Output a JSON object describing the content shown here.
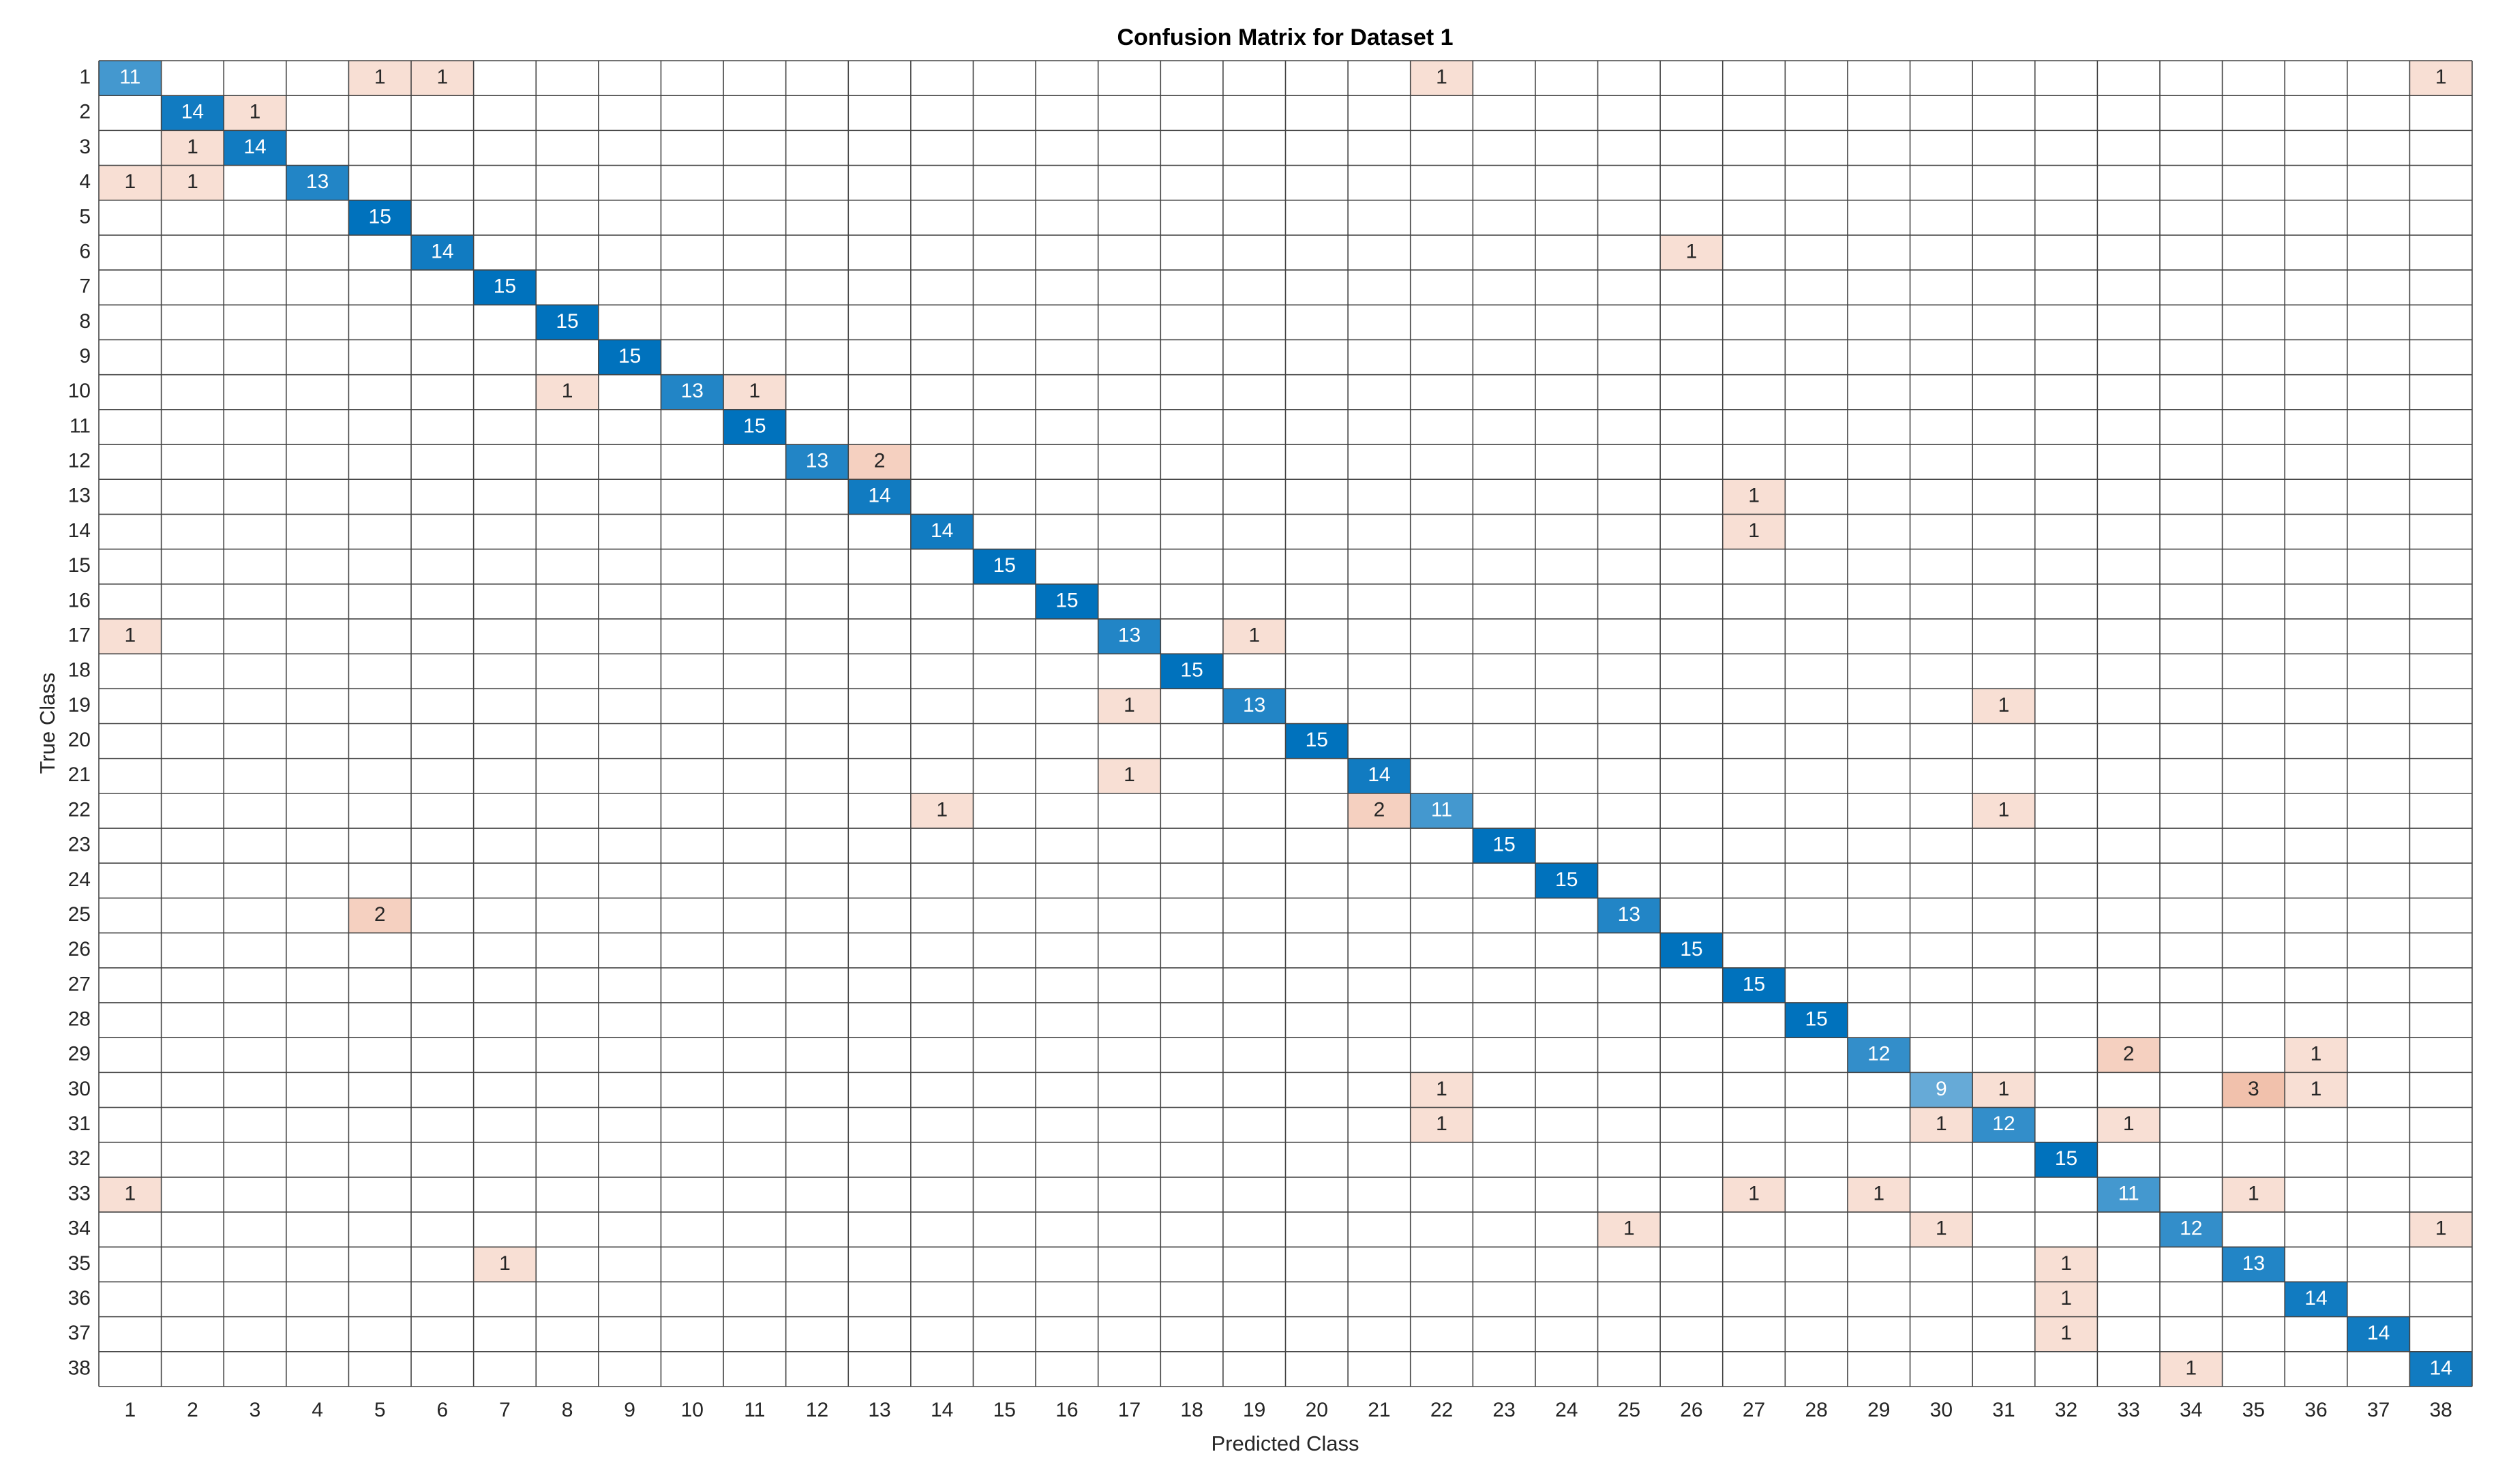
{
  "chart_data": {
    "type": "confusion_matrix",
    "title": "Confusion Matrix for Dataset 1",
    "xlabel": "Predicted Class",
    "ylabel": "True Class",
    "categories": [
      1,
      2,
      3,
      4,
      5,
      6,
      7,
      8,
      9,
      10,
      11,
      12,
      13,
      14,
      15,
      16,
      17,
      18,
      19,
      20,
      21,
      22,
      23,
      24,
      25,
      26,
      27,
      28,
      29,
      30,
      31,
      32,
      33,
      34,
      35,
      36,
      37,
      38
    ],
    "diagonal_color": "#0072bd",
    "offdiagonal_color": "#d95319",
    "cells": [
      {
        "true": 1,
        "predicted": 1,
        "value": 11
      },
      {
        "true": 1,
        "predicted": 5,
        "value": 1
      },
      {
        "true": 1,
        "predicted": 6,
        "value": 1
      },
      {
        "true": 1,
        "predicted": 22,
        "value": 1
      },
      {
        "true": 1,
        "predicted": 38,
        "value": 1
      },
      {
        "true": 2,
        "predicted": 2,
        "value": 14
      },
      {
        "true": 2,
        "predicted": 3,
        "value": 1
      },
      {
        "true": 3,
        "predicted": 2,
        "value": 1
      },
      {
        "true": 3,
        "predicted": 3,
        "value": 14
      },
      {
        "true": 4,
        "predicted": 1,
        "value": 1
      },
      {
        "true": 4,
        "predicted": 2,
        "value": 1
      },
      {
        "true": 4,
        "predicted": 4,
        "value": 13
      },
      {
        "true": 5,
        "predicted": 5,
        "value": 15
      },
      {
        "true": 6,
        "predicted": 6,
        "value": 14
      },
      {
        "true": 6,
        "predicted": 26,
        "value": 1
      },
      {
        "true": 7,
        "predicted": 7,
        "value": 15
      },
      {
        "true": 8,
        "predicted": 8,
        "value": 15
      },
      {
        "true": 9,
        "predicted": 9,
        "value": 15
      },
      {
        "true": 10,
        "predicted": 8,
        "value": 1
      },
      {
        "true": 10,
        "predicted": 10,
        "value": 13
      },
      {
        "true": 10,
        "predicted": 11,
        "value": 1
      },
      {
        "true": 11,
        "predicted": 11,
        "value": 15
      },
      {
        "true": 12,
        "predicted": 12,
        "value": 13
      },
      {
        "true": 12,
        "predicted": 13,
        "value": 2
      },
      {
        "true": 13,
        "predicted": 13,
        "value": 14
      },
      {
        "true": 13,
        "predicted": 27,
        "value": 1
      },
      {
        "true": 14,
        "predicted": 14,
        "value": 14
      },
      {
        "true": 14,
        "predicted": 27,
        "value": 1
      },
      {
        "true": 15,
        "predicted": 15,
        "value": 15
      },
      {
        "true": 16,
        "predicted": 16,
        "value": 15
      },
      {
        "true": 17,
        "predicted": 1,
        "value": 1
      },
      {
        "true": 17,
        "predicted": 17,
        "value": 13
      },
      {
        "true": 17,
        "predicted": 19,
        "value": 1
      },
      {
        "true": 18,
        "predicted": 18,
        "value": 15
      },
      {
        "true": 19,
        "predicted": 17,
        "value": 1
      },
      {
        "true": 19,
        "predicted": 19,
        "value": 13
      },
      {
        "true": 19,
        "predicted": 31,
        "value": 1
      },
      {
        "true": 20,
        "predicted": 20,
        "value": 15
      },
      {
        "true": 21,
        "predicted": 17,
        "value": 1
      },
      {
        "true": 21,
        "predicted": 21,
        "value": 14
      },
      {
        "true": 22,
        "predicted": 14,
        "value": 1
      },
      {
        "true": 22,
        "predicted": 21,
        "value": 2
      },
      {
        "true": 22,
        "predicted": 22,
        "value": 11
      },
      {
        "true": 22,
        "predicted": 31,
        "value": 1
      },
      {
        "true": 23,
        "predicted": 23,
        "value": 15
      },
      {
        "true": 24,
        "predicted": 24,
        "value": 15
      },
      {
        "true": 25,
        "predicted": 5,
        "value": 2
      },
      {
        "true": 25,
        "predicted": 25,
        "value": 13
      },
      {
        "true": 26,
        "predicted": 26,
        "value": 15
      },
      {
        "true": 27,
        "predicted": 27,
        "value": 15
      },
      {
        "true": 28,
        "predicted": 28,
        "value": 15
      },
      {
        "true": 29,
        "predicted": 29,
        "value": 12
      },
      {
        "true": 29,
        "predicted": 33,
        "value": 2
      },
      {
        "true": 29,
        "predicted": 36,
        "value": 1
      },
      {
        "true": 30,
        "predicted": 22,
        "value": 1
      },
      {
        "true": 30,
        "predicted": 30,
        "value": 9
      },
      {
        "true": 30,
        "predicted": 31,
        "value": 1
      },
      {
        "true": 30,
        "predicted": 35,
        "value": 3
      },
      {
        "true": 30,
        "predicted": 36,
        "value": 1
      },
      {
        "true": 31,
        "predicted": 22,
        "value": 1
      },
      {
        "true": 31,
        "predicted": 30,
        "value": 1
      },
      {
        "true": 31,
        "predicted": 31,
        "value": 12
      },
      {
        "true": 31,
        "predicted": 33,
        "value": 1
      },
      {
        "true": 32,
        "predicted": 32,
        "value": 15
      },
      {
        "true": 33,
        "predicted": 1,
        "value": 1
      },
      {
        "true": 33,
        "predicted": 27,
        "value": 1
      },
      {
        "true": 33,
        "predicted": 29,
        "value": 1
      },
      {
        "true": 33,
        "predicted": 33,
        "value": 11
      },
      {
        "true": 33,
        "predicted": 35,
        "value": 1
      },
      {
        "true": 34,
        "predicted": 25,
        "value": 1
      },
      {
        "true": 34,
        "predicted": 30,
        "value": 1
      },
      {
        "true": 34,
        "predicted": 34,
        "value": 12
      },
      {
        "true": 34,
        "predicted": 38,
        "value": 1
      },
      {
        "true": 35,
        "predicted": 7,
        "value": 1
      },
      {
        "true": 35,
        "predicted": 32,
        "value": 1
      },
      {
        "true": 35,
        "predicted": 35,
        "value": 13
      },
      {
        "true": 36,
        "predicted": 32,
        "value": 1
      },
      {
        "true": 36,
        "predicted": 36,
        "value": 14
      },
      {
        "true": 37,
        "predicted": 32,
        "value": 1
      },
      {
        "true": 37,
        "predicted": 37,
        "value": 14
      },
      {
        "true": 38,
        "predicted": 34,
        "value": 1
      },
      {
        "true": 38,
        "predicted": 38,
        "value": 14
      }
    ]
  }
}
